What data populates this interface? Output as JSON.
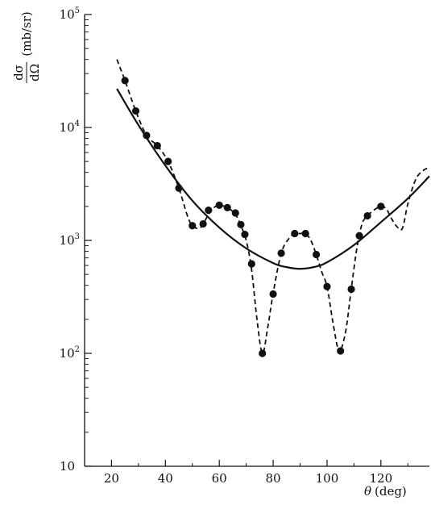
{
  "chart_data": {
    "type": "scatter",
    "title": "",
    "xlabel": {
      "symbol": "θ",
      "unit": "(deg)"
    },
    "ylabel": {
      "numerator": "dσ",
      "denominator": "dΩ",
      "unit": "(mb/sr)"
    },
    "xlim": [
      10,
      138
    ],
    "ylim": [
      10,
      100000
    ],
    "yscale": "log",
    "xticks": [
      20,
      40,
      60,
      80,
      100,
      120
    ],
    "xtick_labels": [
      "20",
      "40",
      "60",
      "80",
      "100",
      "120"
    ],
    "yticks": [
      {
        "value": 10,
        "base": "10",
        "exp": ""
      },
      {
        "value": 100,
        "base": "10",
        "exp": "2"
      },
      {
        "value": 1000,
        "base": "10",
        "exp": "3"
      },
      {
        "value": 10000,
        "base": "10",
        "exp": "4"
      },
      {
        "value": 100000,
        "base": "10",
        "exp": "5"
      }
    ],
    "grid": false,
    "series": [
      {
        "style": "points",
        "x": [
          25,
          29,
          33,
          37,
          41,
          45,
          50,
          54,
          56,
          60,
          63,
          66,
          68,
          69.5,
          72,
          76,
          80,
          83,
          88,
          92,
          96,
          100,
          105,
          109,
          112,
          115,
          120
        ],
        "y": [
          26000,
          14000,
          8500,
          6900,
          5000,
          2900,
          1350,
          1400,
          1850,
          2050,
          1950,
          1750,
          1380,
          1130,
          620,
          100,
          335,
          770,
          1150,
          1150,
          750,
          390,
          105,
          370,
          1100,
          1650,
          2000
        ]
      },
      {
        "style": "dashed",
        "x": [
          22,
          25,
          29,
          33,
          37,
          41,
          45,
          48,
          50,
          53,
          56,
          58,
          60,
          63,
          66,
          68,
          70,
          72,
          74,
          76,
          78,
          80,
          83,
          86,
          88,
          90,
          92,
          94,
          96,
          98,
          100,
          102,
          104,
          105,
          107,
          109,
          111,
          113,
          115,
          118,
          120,
          122,
          124,
          126,
          128,
          130,
          133,
          136,
          138
        ],
        "y": [
          40000,
          26000,
          14000,
          8500,
          6900,
          5000,
          2900,
          1700,
          1350,
          1300,
          1700,
          1950,
          2050,
          1950,
          1700,
          1350,
          1000,
          550,
          200,
          100,
          170,
          340,
          770,
          1050,
          1150,
          1150,
          1150,
          1000,
          750,
          530,
          390,
          200,
          110,
          105,
          160,
          370,
          830,
          1400,
          1650,
          1900,
          2000,
          1900,
          1550,
          1320,
          1280,
          2100,
          3500,
          4200,
          4400
        ]
      },
      {
        "style": "solid",
        "x": [
          22,
          30,
          40,
          50,
          60,
          70,
          80,
          85,
          90,
          95,
          100,
          110,
          120,
          130,
          138
        ],
        "y": [
          22000,
          10500,
          4600,
          2250,
          1300,
          850,
          630,
          580,
          560,
          580,
          640,
          910,
          1450,
          2350,
          3700
        ]
      }
    ]
  }
}
